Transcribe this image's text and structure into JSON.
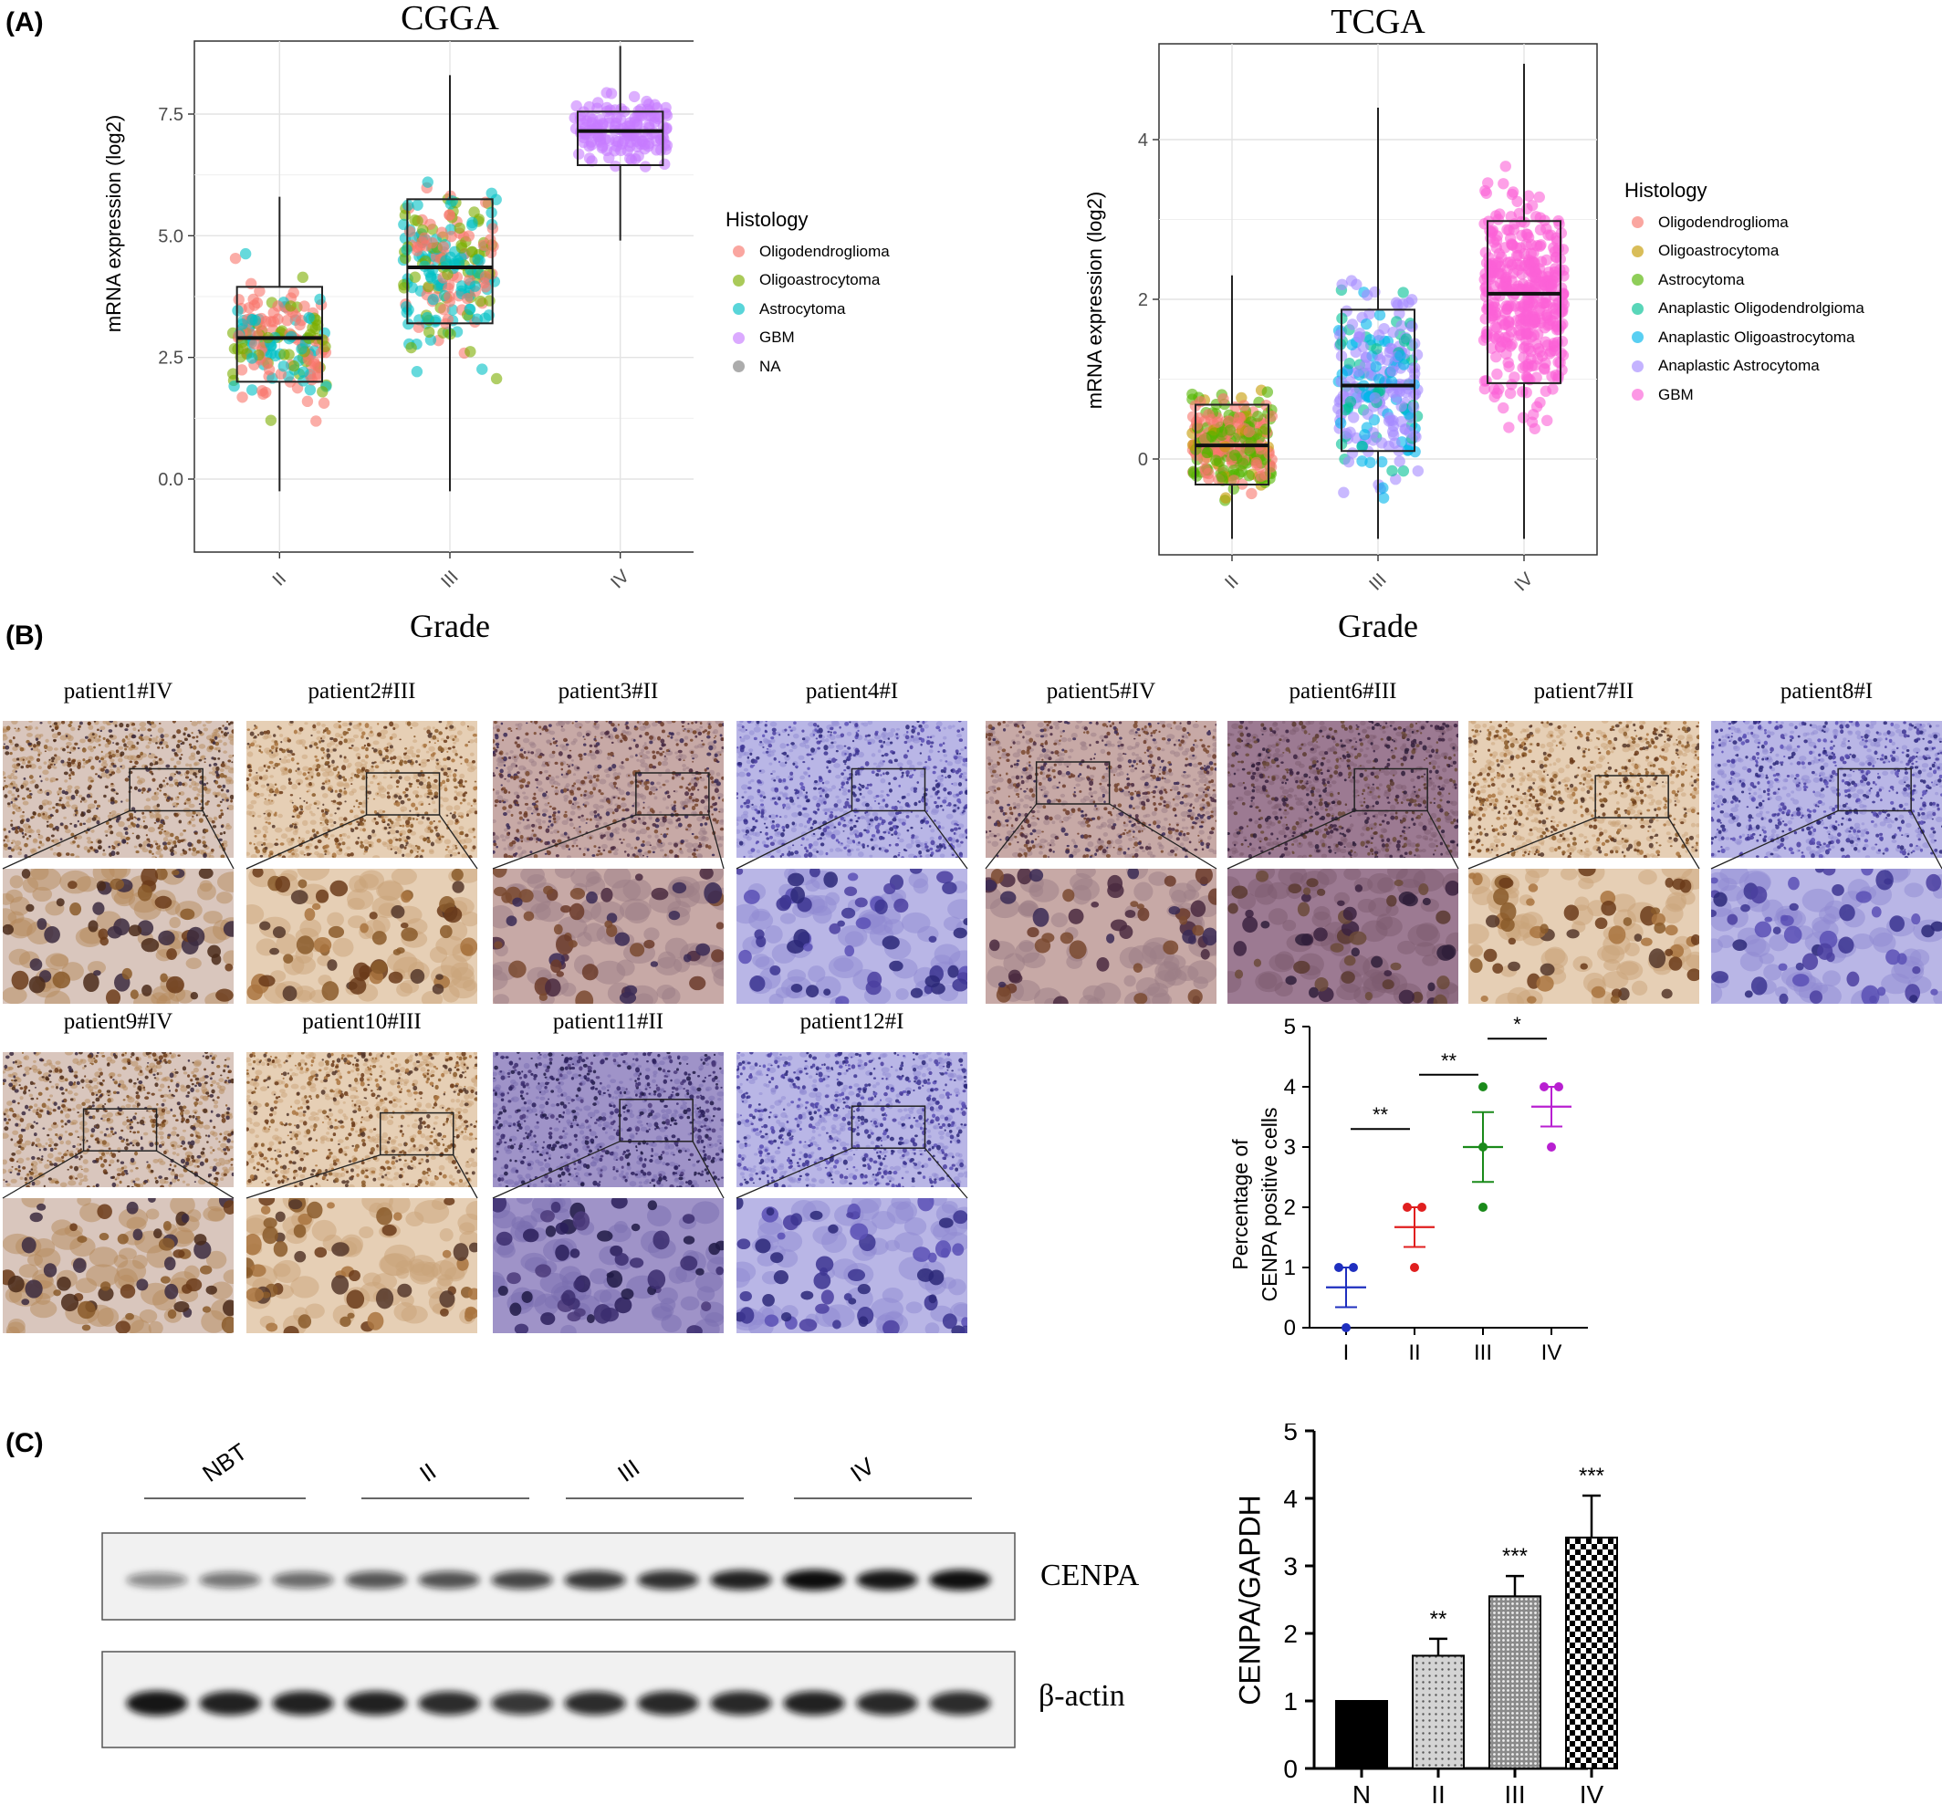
{
  "panels": {
    "a": "(A)",
    "b": "(B)",
    "c": "(C)"
  },
  "panel_a": {
    "cgga": {
      "title": "CGGA",
      "ylabel": "mRNA expression (log2)",
      "xlabel": "Grade",
      "legend_title": "Histology",
      "legend": [
        {
          "label": "Oligodendroglioma",
          "color": "#F8766D"
        },
        {
          "label": "Oligoastrocytoma",
          "color": "#7CAE00"
        },
        {
          "label": "Astrocytoma",
          "color": "#00BFC4"
        },
        {
          "label": "GBM",
          "color": "#C77CFF"
        },
        {
          "label": "NA",
          "color": "#7F7F7F"
        }
      ]
    },
    "tcga": {
      "title": "TCGA",
      "ylabel": "mRNA expression (log2)",
      "xlabel": "Grade",
      "legend_title": "Histology",
      "legend": [
        {
          "label": "Oligodendroglioma",
          "color": "#F8766D"
        },
        {
          "label": "Oligoastrocytoma",
          "color": "#C49A00"
        },
        {
          "label": "Astrocytoma",
          "color": "#53B400"
        },
        {
          "label": "Anaplastic Oligodendrolgioma",
          "color": "#00C094"
        },
        {
          "label": "Anaplastic Oligoastrocytoma",
          "color": "#00B6EB"
        },
        {
          "label": "Anaplastic Astrocytoma",
          "color": "#A58AFF"
        },
        {
          "label": "GBM",
          "color": "#FB61D7"
        }
      ]
    }
  },
  "panel_b": {
    "patients": [
      {
        "label": "patient1#IV",
        "tone": "brown-strong"
      },
      {
        "label": "patient2#III",
        "tone": "brown-light"
      },
      {
        "label": "patient3#II",
        "tone": "mixed"
      },
      {
        "label": "patient4#I",
        "tone": "blue"
      },
      {
        "label": "patient5#IV",
        "tone": "mixed"
      },
      {
        "label": "patient6#III",
        "tone": "brown-purple"
      },
      {
        "label": "patient7#II",
        "tone": "brown-light"
      },
      {
        "label": "patient8#I",
        "tone": "blue"
      },
      {
        "label": "patient9#IV",
        "tone": "brown-strong"
      },
      {
        "label": "patient10#III",
        "tone": "brown-light"
      },
      {
        "label": "patient11#II",
        "tone": "purple"
      },
      {
        "label": "patient12#I",
        "tone": "blue"
      }
    ]
  },
  "panel_c": {
    "lane_groups": [
      "NBT",
      "II",
      "III",
      "IV"
    ],
    "bands": [
      "CENPA",
      "β-actin"
    ],
    "band_intensity": {
      "CENPA": [
        0.35,
        0.45,
        0.5,
        0.6,
        0.62,
        0.68,
        0.75,
        0.78,
        0.85,
        0.95,
        0.9,
        0.93
      ],
      "beta_actin": [
        0.9,
        0.85,
        0.85,
        0.85,
        0.8,
        0.75,
        0.8,
        0.82,
        0.82,
        0.85,
        0.82,
        0.8
      ]
    }
  },
  "chart_data": [
    {
      "id": "cgga",
      "type": "scatter",
      "title": "CGGA",
      "xlabel": "Grade",
      "ylabel": "mRNA expression (log2)",
      "categories": [
        "II",
        "III",
        "IV"
      ],
      "yticks": [
        0.0,
        2.5,
        5.0,
        7.5
      ],
      "ytick_labels": [
        "0.0",
        "2.5",
        "5.0",
        "7.5"
      ],
      "ylim": [
        -1.5,
        9.0
      ],
      "boxes": [
        {
          "category": "II",
          "q1": 2.0,
          "median": 2.9,
          "q3": 3.95,
          "whisker_low": -0.25,
          "whisker_high": 5.8
        },
        {
          "category": "III",
          "q1": 3.2,
          "median": 4.35,
          "q3": 5.75,
          "whisker_low": -0.25,
          "whisker_high": 8.3
        },
        {
          "category": "IV",
          "q1": 6.45,
          "median": 7.15,
          "q3": 7.55,
          "whisker_low": 4.9,
          "whisker_high": 8.9
        }
      ],
      "point_groups": [
        {
          "category": "II",
          "n": 190,
          "mix": {
            "#F8766D": 0.45,
            "#7CAE00": 0.25,
            "#00BFC4": 0.3
          }
        },
        {
          "category": "III",
          "n": 230,
          "mix": {
            "#F8766D": 0.25,
            "#7CAE00": 0.3,
            "#00BFC4": 0.45
          }
        },
        {
          "category": "IV",
          "n": 150,
          "mix": {
            "#C77CFF": 1.0
          }
        }
      ],
      "legend_title": "Histology",
      "grid": true,
      "legend_position": "right"
    },
    {
      "id": "tcga",
      "type": "scatter",
      "title": "TCGA",
      "xlabel": "Grade",
      "ylabel": "mRNA expression (log2)",
      "categories": [
        "II",
        "III",
        "IV"
      ],
      "yticks": [
        0,
        2,
        4
      ],
      "ytick_labels": [
        "0",
        "2",
        "4"
      ],
      "ylim": [
        -1.2,
        5.2
      ],
      "boxes": [
        {
          "category": "II",
          "q1": -0.32,
          "median": 0.17,
          "q3": 0.68,
          "whisker_low": -1.0,
          "whisker_high": 2.3
        },
        {
          "category": "III",
          "q1": 0.1,
          "median": 0.92,
          "q3": 1.87,
          "whisker_low": -1.0,
          "whisker_high": 4.4
        },
        {
          "category": "IV",
          "q1": 0.95,
          "median": 2.07,
          "q3": 2.98,
          "whisker_low": -1.0,
          "whisker_high": 4.95
        }
      ],
      "point_groups": [
        {
          "category": "II",
          "n": 260,
          "mix": {
            "#F8766D": 0.45,
            "#C49A00": 0.1,
            "#53B400": 0.45
          }
        },
        {
          "category": "III",
          "n": 250,
          "mix": {
            "#A58AFF": 0.6,
            "#00C094": 0.2,
            "#00B6EB": 0.2
          }
        },
        {
          "category": "IV",
          "n": 400,
          "mix": {
            "#FB61D7": 1.0
          }
        }
      ],
      "legend_title": "Histology",
      "grid": true,
      "legend_position": "right"
    },
    {
      "id": "cenpa-pct",
      "type": "scatter",
      "ylabel_lines": [
        "Percentage of",
        "CENPA positive cells"
      ],
      "categories": [
        "I",
        "II",
        "III",
        "IV"
      ],
      "ylim": [
        0,
        5
      ],
      "yticks": [
        0,
        1,
        2,
        3,
        4,
        5
      ],
      "colors": [
        "#1f2fbf",
        "#e01f1f",
        "#1a8a1a",
        "#b81fd1"
      ],
      "points": [
        [
          0,
          1,
          1
        ],
        [
          1,
          2,
          2
        ],
        [
          2,
          3,
          4
        ],
        [
          3,
          4,
          4
        ]
      ],
      "means": [
        0.67,
        1.67,
        3.0,
        3.67
      ],
      "sem": [
        0.33,
        0.33,
        0.58,
        0.33
      ],
      "significance": [
        {
          "from": "I",
          "to": "II",
          "label": "**",
          "y": 3.3
        },
        {
          "from": "II",
          "to": "III",
          "label": "**",
          "y": 4.2
        },
        {
          "from": "III",
          "to": "IV",
          "label": "*",
          "y": 4.8
        }
      ]
    },
    {
      "id": "cenpa-gapdh",
      "type": "bar",
      "ylabel": "CENPA/GAPDH",
      "categories": [
        "N",
        "II",
        "III",
        "IV"
      ],
      "values": [
        1.0,
        1.67,
        2.55,
        3.42
      ],
      "errors": [
        0,
        0.25,
        0.3,
        0.62
      ],
      "significance": [
        "",
        "**",
        "***",
        "***"
      ],
      "ylim": [
        0,
        5
      ],
      "yticks": [
        0,
        1,
        2,
        3,
        4,
        5
      ],
      "patterns": [
        "solid",
        "dots",
        "dense-dots",
        "checker"
      ]
    }
  ]
}
